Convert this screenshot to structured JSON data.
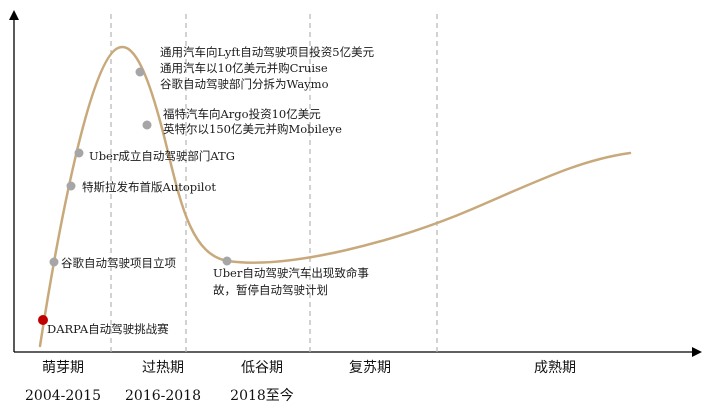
{
  "chart_data": {
    "type": "line",
    "title": "",
    "xlabel": "",
    "ylabel": "",
    "phases": [
      {
        "name": "萌芽期",
        "years": "2004-2015"
      },
      {
        "name": "过热期",
        "years": "2016-2018"
      },
      {
        "name": "低谷期",
        "years": "2018至今"
      },
      {
        "name": "复苏期",
        "years": ""
      },
      {
        "name": "成熟期",
        "years": ""
      }
    ],
    "events": [
      {
        "lines": [
          "DARPA自动驾驶挑战赛"
        ]
      },
      {
        "lines": [
          "谷歌自动驾驶项目立项"
        ]
      },
      {
        "lines": [
          "特斯拉发布首版Autopilot"
        ]
      },
      {
        "lines": [
          "Uber成立自动驾驶部门ATG"
        ]
      },
      {
        "lines": [
          "通用汽车向Lyft自动驾驶项目投资5亿美元",
          "通用汽车以10亿美元并购Cruise",
          "谷歌自动驾驶部门分拆为Waymo"
        ]
      },
      {
        "lines": [
          "福特汽车向Argo投资10亿美元",
          "英特尔以150亿美元并购Mobileye"
        ]
      },
      {
        "lines": [
          "Uber自动驾驶汽车出现致命事",
          "故，暂停自动驾驶计划"
        ]
      }
    ],
    "grid": false,
    "colors": {
      "curve": "#c8a97b",
      "marker": "#a6a6a6",
      "start_marker": "#c00000",
      "axis": "#000000",
      "divider": "#b3b3b3"
    }
  }
}
